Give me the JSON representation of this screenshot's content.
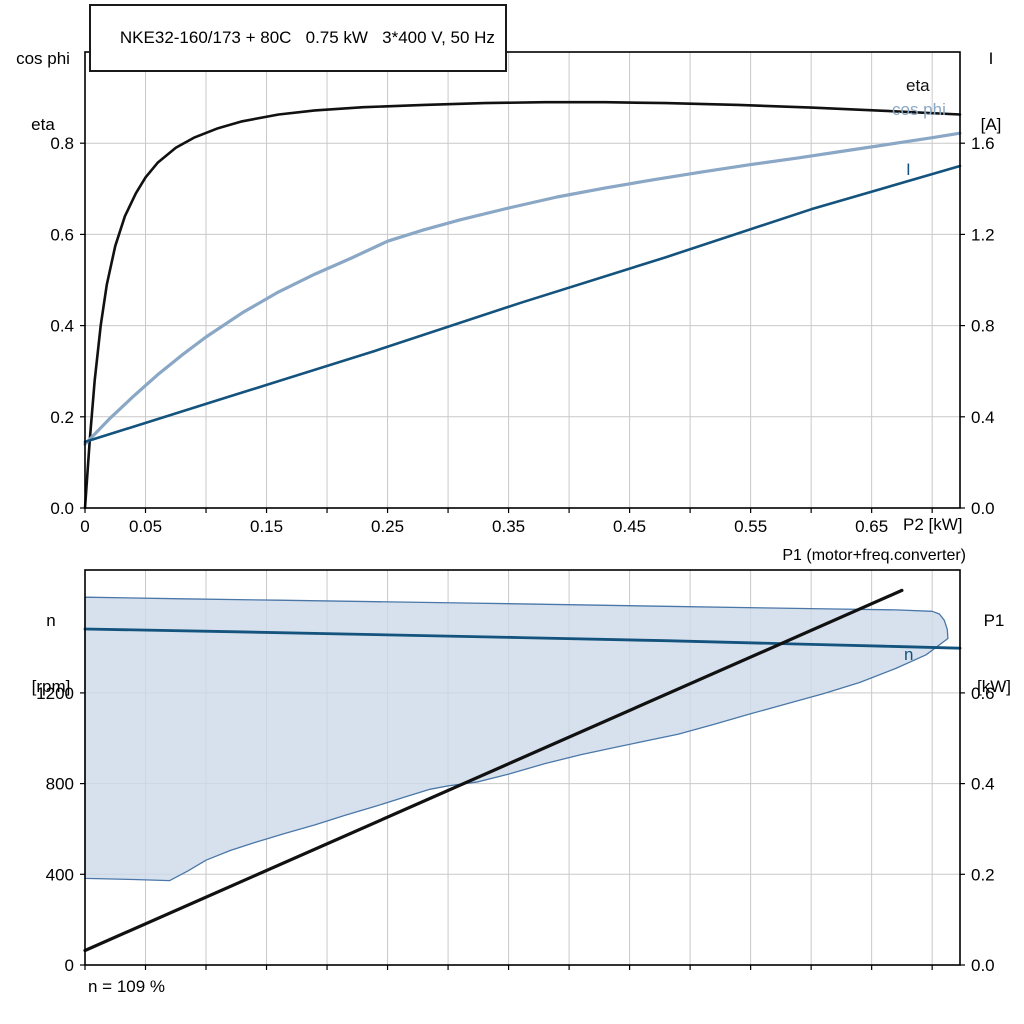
{
  "header": {
    "title": "NKE32-160/173 + 80C   0.75 kW   3*400 V, 50 Hz"
  },
  "labels": {
    "top_left_1": "cos phi",
    "top_left_2": "eta",
    "top_right_1": "I",
    "top_right_2": "[A]",
    "x_axis": "P2 [kW]",
    "curve_eta": "eta",
    "curve_cosphi": "cos phi",
    "curve_current": "I",
    "bottom_left_1": "n",
    "bottom_left_2": "[rpm]",
    "bottom_right_1": "P1",
    "bottom_right_2": "[kW]",
    "p1_curve_label": "P1 (motor+freq.converter)",
    "n_curve_label": "n",
    "footnote": "n = 109 %"
  },
  "colors": {
    "eta": "#111111",
    "cos_phi": "#8aa7c5",
    "current": "#14537d",
    "n_line": "#14537d",
    "p1_line": "#111111",
    "area_fill": "#ccd9e8",
    "area_stroke": "#4a77a8",
    "grid": "#c9c9c9",
    "frame": "#000000"
  },
  "chart_data": [
    {
      "id": "motor-performance-curves",
      "type": "line",
      "title": "NKE32-160/173 + 80C  0.75 kW  3*400 V, 50 Hz",
      "xlabel": "P2 [kW]",
      "ylabel_left": "cos phi / eta",
      "ylabel_right": "I [A]",
      "xlim": [
        0,
        0.723
      ],
      "ylim_left": [
        0,
        1.0
      ],
      "ylim_right": [
        0,
        2.0
      ],
      "xgrid_step": 0.05,
      "xticks": [
        [
          0,
          "0"
        ],
        [
          0.05,
          "0.05"
        ],
        [
          0.15,
          "0.15"
        ],
        [
          0.25,
          "0.25"
        ],
        [
          0.35,
          "0.35"
        ],
        [
          0.45,
          "0.45"
        ],
        [
          0.55,
          "0.55"
        ],
        [
          0.65,
          "0.65"
        ]
      ],
      "yticks_left": [
        [
          0,
          "0.0"
        ],
        [
          0.2,
          "0.2"
        ],
        [
          0.4,
          "0.4"
        ],
        [
          0.6,
          "0.6"
        ],
        [
          0.8,
          "0.8"
        ]
      ],
      "yticks_right": [
        [
          0,
          "0.0"
        ],
        [
          0.4,
          "0.4"
        ],
        [
          0.8,
          "0.8"
        ],
        [
          1.2,
          "1.2"
        ],
        [
          1.6,
          "1.6"
        ]
      ],
      "series": [
        {
          "name": "eta",
          "axis": "left",
          "color": "#111111",
          "width": 2.6,
          "points": [
            [
              0,
              0
            ],
            [
              0.004,
              0.15
            ],
            [
              0.008,
              0.28
            ],
            [
              0.013,
              0.4
            ],
            [
              0.018,
              0.49
            ],
            [
              0.025,
              0.575
            ],
            [
              0.033,
              0.64
            ],
            [
              0.042,
              0.69
            ],
            [
              0.05,
              0.725
            ],
            [
              0.06,
              0.757
            ],
            [
              0.075,
              0.79
            ],
            [
              0.09,
              0.812
            ],
            [
              0.11,
              0.833
            ],
            [
              0.13,
              0.848
            ],
            [
              0.16,
              0.863
            ],
            [
              0.19,
              0.872
            ],
            [
              0.23,
              0.879
            ],
            [
              0.28,
              0.884
            ],
            [
              0.33,
              0.888
            ],
            [
              0.38,
              0.89
            ],
            [
              0.43,
              0.89
            ],
            [
              0.48,
              0.888
            ],
            [
              0.54,
              0.884
            ],
            [
              0.6,
              0.878
            ],
            [
              0.66,
              0.871
            ],
            [
              0.723,
              0.863
            ]
          ]
        },
        {
          "name": "cos phi",
          "axis": "left",
          "color": "#8aa7c5",
          "width": 3.2,
          "points": [
            [
              0,
              0.14
            ],
            [
              0.02,
              0.195
            ],
            [
              0.04,
              0.245
            ],
            [
              0.06,
              0.292
            ],
            [
              0.08,
              0.335
            ],
            [
              0.1,
              0.375
            ],
            [
              0.13,
              0.428
            ],
            [
              0.16,
              0.474
            ],
            [
              0.19,
              0.513
            ],
            [
              0.22,
              0.548
            ],
            [
              0.25,
              0.585
            ],
            [
              0.28,
              0.61
            ],
            [
              0.31,
              0.632
            ],
            [
              0.35,
              0.658
            ],
            [
              0.39,
              0.682
            ],
            [
              0.43,
              0.702
            ],
            [
              0.47,
              0.72
            ],
            [
              0.51,
              0.737
            ],
            [
              0.55,
              0.753
            ],
            [
              0.59,
              0.768
            ],
            [
              0.63,
              0.784
            ],
            [
              0.67,
              0.8
            ],
            [
              0.7,
              0.812
            ],
            [
              0.723,
              0.822
            ]
          ]
        },
        {
          "name": "I",
          "axis": "right",
          "color": "#14537d",
          "width": 2.6,
          "points": [
            [
              0,
              0.29
            ],
            [
              0.12,
              0.49
            ],
            [
              0.24,
              0.69
            ],
            [
              0.36,
              0.9
            ],
            [
              0.48,
              1.1
            ],
            [
              0.6,
              1.31
            ],
            [
              0.723,
              1.5
            ]
          ]
        }
      ]
    },
    {
      "id": "speed-and-input-power",
      "type": "area+line",
      "xlabel": "",
      "ylabel_left": "n [rpm]",
      "ylabel_right": "P1 [kW]",
      "annotation": "n = 109 %",
      "xlim": [
        0,
        0.723
      ],
      "ylim_left": [
        0,
        1742
      ],
      "ylim_right": [
        0,
        0.871
      ],
      "xgrid_step": 0.05,
      "xticks": [],
      "yticks_left": [
        [
          0,
          "0"
        ],
        [
          400,
          "400"
        ],
        [
          800,
          "800"
        ],
        [
          1200,
          "1200"
        ]
      ],
      "yticks_right": [
        [
          0,
          "0.0"
        ],
        [
          0.2,
          "0.2"
        ],
        [
          0.4,
          "0.4"
        ],
        [
          0.6,
          "0.6"
        ]
      ],
      "area": {
        "name": "speed-operating-envelope",
        "fill": "#ccd9e8",
        "stroke": "#4a77a8",
        "upper": [
          [
            0,
            1622
          ],
          [
            0.08,
            1615
          ],
          [
            0.16,
            1609
          ],
          [
            0.24,
            1602
          ],
          [
            0.32,
            1596
          ],
          [
            0.4,
            1589
          ],
          [
            0.48,
            1582
          ],
          [
            0.56,
            1575
          ],
          [
            0.62,
            1570
          ],
          [
            0.67,
            1566
          ],
          [
            0.7,
            1560
          ],
          [
            0.706,
            1548
          ],
          [
            0.71,
            1520
          ],
          [
            0.7125,
            1480
          ],
          [
            0.713,
            1440
          ]
        ],
        "lower": [
          [
            0,
            382
          ],
          [
            0.04,
            377
          ],
          [
            0.07,
            372
          ],
          [
            0.085,
            415
          ],
          [
            0.1,
            462
          ],
          [
            0.12,
            505
          ],
          [
            0.14,
            540
          ],
          [
            0.165,
            580
          ],
          [
            0.19,
            618
          ],
          [
            0.215,
            660
          ],
          [
            0.24,
            700
          ],
          [
            0.265,
            742
          ],
          [
            0.285,
            775
          ],
          [
            0.3,
            790
          ],
          [
            0.325,
            808
          ],
          [
            0.35,
            842
          ],
          [
            0.38,
            888
          ],
          [
            0.41,
            928
          ],
          [
            0.44,
            962
          ],
          [
            0.465,
            990
          ],
          [
            0.49,
            1018
          ],
          [
            0.52,
            1062
          ],
          [
            0.55,
            1108
          ],
          [
            0.58,
            1152
          ],
          [
            0.61,
            1196
          ],
          [
            0.64,
            1246
          ],
          [
            0.67,
            1308
          ],
          [
            0.695,
            1368
          ],
          [
            0.713,
            1440
          ]
        ]
      },
      "series": [
        {
          "name": "n",
          "axis": "left",
          "color": "#14537d",
          "width": 2.8,
          "points": [
            [
              0,
              1482
            ],
            [
              0.12,
              1470
            ],
            [
              0.24,
              1457
            ],
            [
              0.36,
              1444
            ],
            [
              0.48,
              1430
            ],
            [
              0.6,
              1414
            ],
            [
              0.66,
              1406
            ],
            [
              0.723,
              1397
            ]
          ]
        },
        {
          "name": "P1 (motor+freq.converter)",
          "axis": "right",
          "color": "#111111",
          "width": 3.2,
          "points": [
            [
              0,
              0.032
            ],
            [
              0.675,
              0.826
            ]
          ]
        }
      ]
    }
  ]
}
